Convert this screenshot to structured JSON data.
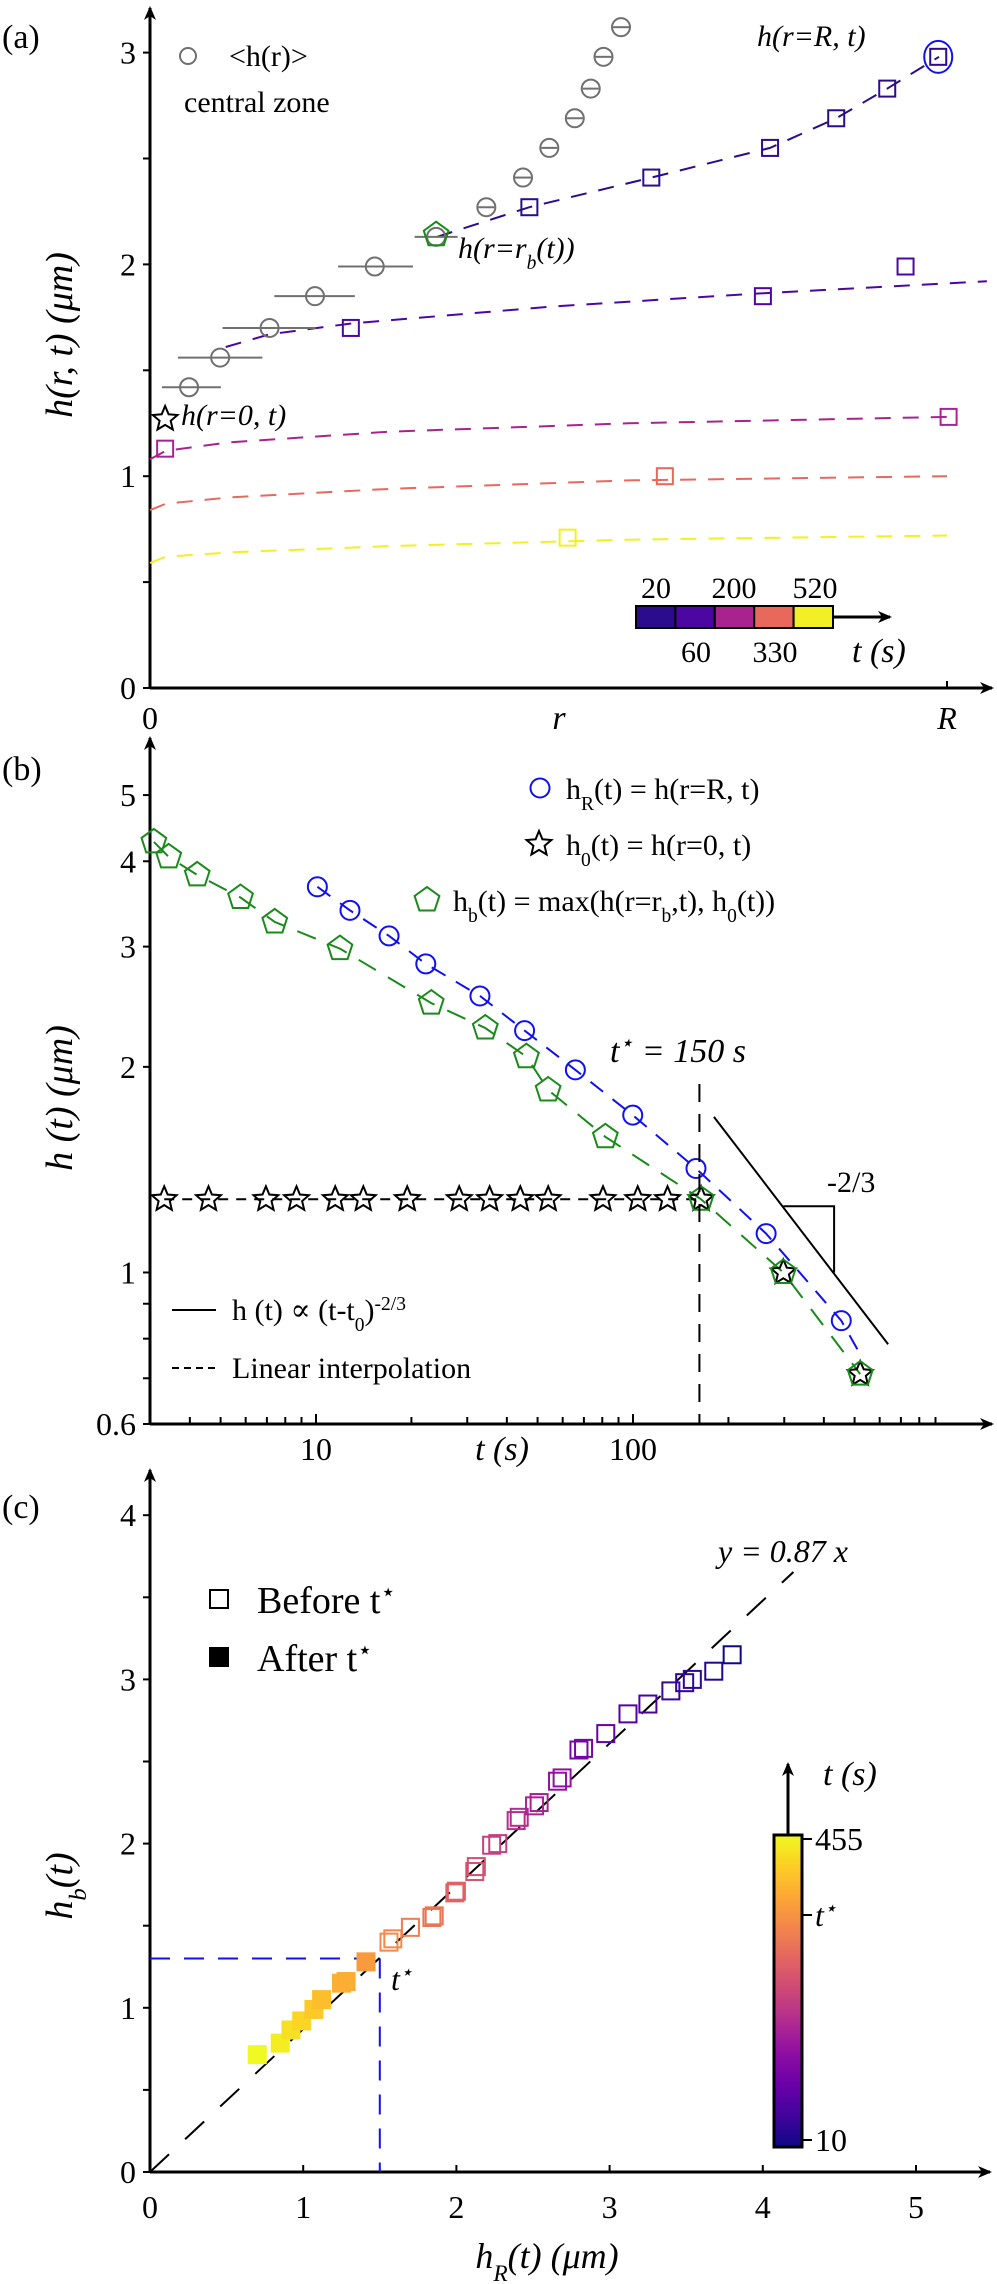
{
  "figure": {
    "panel_labels": [
      "(a)",
      "(b)",
      "(c)"
    ]
  },
  "colors": {
    "gray": "#707070",
    "blue": "#1010f0",
    "green": "#1a8a1a",
    "black": "#000000",
    "time_palette": [
      "#2a0c8c",
      "#4c07a3",
      "#a8238f",
      "#e8685c",
      "#f2f024"
    ],
    "plasma": [
      "#0d0887",
      "#41049d",
      "#6a00a8",
      "#8f0da4",
      "#b12a90",
      "#cc4778",
      "#e16462",
      "#f2844b",
      "#fca636",
      "#fcce25",
      "#f0f921"
    ]
  },
  "chart_data": [
    {
      "panel": "(a)",
      "type": "scatter",
      "xlabel": "r",
      "ylabel": "h(r, t) (μm)",
      "xlim": [
        0,
        1
      ],
      "ylim": [
        0,
        3.3
      ],
      "x_tick_labels": [
        "0",
        "R"
      ],
      "y_tick_labels": [
        "0",
        "1",
        "2",
        "3"
      ],
      "y_ticks": [
        0,
        1,
        2,
        3
      ],
      "legend": {
        "marker_label": "<h(r)>",
        "marker_sublabel": "central zone"
      },
      "annotations": {
        "edge": "h(r=R, t)",
        "boundary": "h(r=r_{b}(t))",
        "center": "h(r=0, t)"
      },
      "time_legend": {
        "top_labels": [
          "20",
          "200",
          "520"
        ],
        "bottom_labels": [
          "60",
          "330"
        ],
        "axis_label": "t (s)"
      },
      "central_zone": [
        {
          "r": 0.049,
          "h": 1.42,
          "r_err": [
            0.015,
            0.089
          ]
        },
        {
          "r": 0.088,
          "h": 1.56,
          "r_err": [
            0.035,
            0.141
          ]
        },
        {
          "r": 0.15,
          "h": 1.7,
          "r_err": [
            0.091,
            0.208
          ]
        },
        {
          "r": 0.207,
          "h": 1.85,
          "r_err": [
            0.156,
            0.257
          ]
        },
        {
          "r": 0.282,
          "h": 1.99,
          "r_err": [
            0.236,
            0.33
          ]
        },
        {
          "r": 0.359,
          "h": 2.13,
          "r_err": [
            0.332,
            0.386
          ]
        },
        {
          "r": 0.422,
          "h": 2.27,
          "r_err": [
            0.412,
            0.432
          ]
        },
        {
          "r": 0.468,
          "h": 2.41,
          "r_err": [
            0.458,
            0.478
          ]
        },
        {
          "r": 0.501,
          "h": 2.55,
          "r_err": [
            0.491,
            0.511
          ]
        },
        {
          "r": 0.533,
          "h": 2.69,
          "r_err": [
            0.523,
            0.543
          ]
        },
        {
          "r": 0.553,
          "h": 2.83,
          "r_err": [
            0.543,
            0.563
          ]
        },
        {
          "r": 0.569,
          "h": 2.98,
          "r_err": [
            0.559,
            0.579
          ]
        },
        {
          "r": 0.591,
          "h": 3.12,
          "r_err": [
            0.581,
            0.601
          ]
        }
      ],
      "profiles": [
        {
          "t": 20,
          "points": [
            [
              0.476,
              2.27
            ],
            [
              0.629,
              2.41
            ],
            [
              0.778,
              2.55
            ],
            [
              0.861,
              2.69
            ],
            [
              0.925,
              2.83
            ],
            [
              0.989,
              2.98
            ]
          ],
          "fit": [
            [
              0.36,
              2.13
            ],
            [
              0.476,
              2.27
            ],
            [
              0.629,
              2.41
            ],
            [
              0.778,
              2.55
            ],
            [
              0.861,
              2.69
            ],
            [
              0.925,
              2.83
            ],
            [
              0.99,
              2.98
            ]
          ]
        },
        {
          "t": 60,
          "points": [
            [
              0.252,
              1.7
            ],
            [
              0.769,
              1.85
            ],
            [
              0.948,
              1.99
            ]
          ],
          "fit": [
            [
              0.095,
              1.61
            ],
            [
              0.15,
              1.67
            ],
            [
              0.25,
              1.72
            ],
            [
              0.5,
              1.8
            ],
            [
              0.75,
              1.86
            ],
            [
              1.05,
              1.92
            ]
          ]
        },
        {
          "t": 200,
          "points": [
            [
              0.019,
              1.13
            ],
            [
              1.002,
              1.28
            ]
          ],
          "fit": [
            [
              0,
              1.08
            ],
            [
              0.02,
              1.12
            ],
            [
              0.1,
              1.16
            ],
            [
              0.3,
              1.21
            ],
            [
              0.6,
              1.25
            ],
            [
              1.0,
              1.28
            ]
          ]
        },
        {
          "t": 330,
          "points": [
            [
              0.646,
              1.0
            ]
          ],
          "fit": [
            [
              0,
              0.84
            ],
            [
              0.02,
              0.87
            ],
            [
              0.1,
              0.9
            ],
            [
              0.3,
              0.94
            ],
            [
              0.6,
              0.98
            ],
            [
              1.0,
              1.0
            ]
          ]
        },
        {
          "t": 520,
          "points": [
            [
              0.524,
              0.71
            ]
          ],
          "fit": [
            [
              0,
              0.59
            ],
            [
              0.02,
              0.62
            ],
            [
              0.1,
              0.64
            ],
            [
              0.3,
              0.67
            ],
            [
              0.6,
              0.7
            ],
            [
              1.0,
              0.72
            ]
          ]
        }
      ],
      "edge_point": {
        "r": 0.989,
        "h": 2.98
      },
      "boundary_point": {
        "r": 0.359,
        "h": 2.14
      },
      "center_point": {
        "r": 0.019,
        "h": 1.27
      }
    },
    {
      "panel": "(b)",
      "type": "scatter",
      "xscale": "log",
      "yscale": "log",
      "xlabel": "t (s)",
      "ylabel": "h (t) (μm)",
      "xlim": [
        3,
        1300
      ],
      "ylim": [
        0.6,
        5.3
      ],
      "x_tick_labels": [
        "10",
        "100"
      ],
      "x_ticks": [
        10,
        100
      ],
      "y_tick_labels": [
        "0.6",
        "1",
        "2",
        "3",
        "4",
        "5"
      ],
      "y_ticks": [
        0.6,
        1,
        2,
        3,
        4,
        5
      ],
      "series": [
        {
          "name": "h_{R}(t) = h(r=R, t)",
          "marker": "circle",
          "t": [
            10.1,
            12.8,
            17.0,
            22.2,
            32.9,
            45.5,
            65.8,
            99.8,
            158,
            263,
            454
          ],
          "h": [
            3.67,
            3.39,
            3.11,
            2.83,
            2.54,
            2.26,
            1.98,
            1.7,
            1.42,
            1.14,
            0.85
          ]
        },
        {
          "name": "h_{0}(t) = h(r=0, t)",
          "marker": "star",
          "t": [
            3.32,
            4.58,
            6.95,
            8.68,
            11.5,
            14.1,
            19.4,
            28.3,
            35.3,
            44.1,
            54,
            80.4,
            103.5,
            128.5,
            164,
            298,
            521
          ],
          "h": [
            1.28,
            1.28,
            1.28,
            1.28,
            1.28,
            1.28,
            1.28,
            1.28,
            1.28,
            1.28,
            1.28,
            1.28,
            1.28,
            1.28,
            1.28,
            1.0,
            0.71
          ]
        },
        {
          "name": "h_{b}(t) = max(h(r=r_{b},t), h_{0}(t))",
          "marker": "pentagon",
          "t": [
            3.08,
            3.43,
            4.22,
            5.78,
            7.41,
            11.9,
            23.1,
            34.2,
            46.1,
            54,
            81.8,
            164,
            298,
            521
          ],
          "h": [
            4.27,
            4.06,
            3.82,
            3.54,
            3.26,
            2.98,
            2.48,
            2.28,
            2.07,
            1.85,
            1.58,
            1.28,
            1.0,
            0.71
          ]
        }
      ],
      "power_law": {
        "label": "h (t) ∝ (t-t_{0})^{-2/3}",
        "slope": "-2/3",
        "from": [
          180,
          1.69
        ],
        "to": [
          638,
          0.785
        ]
      },
      "interpolation_label": "Linear interpolation",
      "t_star": {
        "value": 150,
        "label": "t^{⋆} = 150 s"
      }
    },
    {
      "panel": "(c)",
      "type": "scatter",
      "xlabel": "h_{R}(t) (μm)",
      "ylabel": "h_{b}(t)",
      "xlim": [
        0,
        5.3
      ],
      "ylim": [
        0,
        4.3
      ],
      "x_tick_labels": [
        "0",
        "1",
        "2",
        "3",
        "4",
        "5"
      ],
      "x_ticks": [
        0,
        1,
        2,
        3,
        4,
        5
      ],
      "y_tick_labels": [
        "0",
        "1",
        "2",
        "3",
        "4"
      ],
      "y_ticks": [
        0,
        1,
        2,
        3,
        4
      ],
      "legend": {
        "before": "Before t^{⋆}",
        "after": "After t^{⋆}"
      },
      "fit": {
        "label": "y = 0.87 x",
        "slope": 0.87
      },
      "t_star_point": {
        "x": 1.5,
        "y": 1.3,
        "label": "t^{⋆}"
      },
      "colorbar": {
        "label": "t (s)",
        "max_label": "455",
        "mid_label": "t^{⋆}",
        "min_label": "10"
      },
      "after": [
        [
          0.7,
          0.715
        ],
        [
          0.85,
          0.785
        ],
        [
          0.92,
          0.865
        ],
        [
          0.99,
          0.92
        ],
        [
          1.07,
          0.99
        ],
        [
          1.12,
          1.05
        ],
        [
          1.25,
          1.15
        ],
        [
          1.28,
          1.16
        ],
        [
          1.41,
          1.28
        ]
      ],
      "before": [
        [
          1.56,
          1.4
        ],
        [
          1.585,
          1.42
        ],
        [
          1.7,
          1.49
        ],
        [
          1.84,
          1.55
        ],
        [
          1.855,
          1.56
        ],
        [
          1.99,
          1.7
        ],
        [
          2.0,
          1.71
        ],
        [
          2.12,
          1.83
        ],
        [
          2.13,
          1.86
        ],
        [
          2.23,
          1.99
        ],
        [
          2.27,
          2.0
        ],
        [
          2.39,
          2.14
        ],
        [
          2.41,
          2.16
        ],
        [
          2.51,
          2.23
        ],
        [
          2.54,
          2.25
        ],
        [
          2.66,
          2.38
        ],
        [
          2.69,
          2.4
        ],
        [
          2.8,
          2.57
        ],
        [
          2.83,
          2.58
        ],
        [
          2.975,
          2.67
        ],
        [
          3.12,
          2.79
        ],
        [
          3.25,
          2.85
        ],
        [
          3.4,
          2.93
        ],
        [
          3.49,
          2.98
        ],
        [
          3.54,
          3.0
        ],
        [
          3.68,
          3.05
        ],
        [
          3.8,
          3.15
        ]
      ]
    }
  ]
}
